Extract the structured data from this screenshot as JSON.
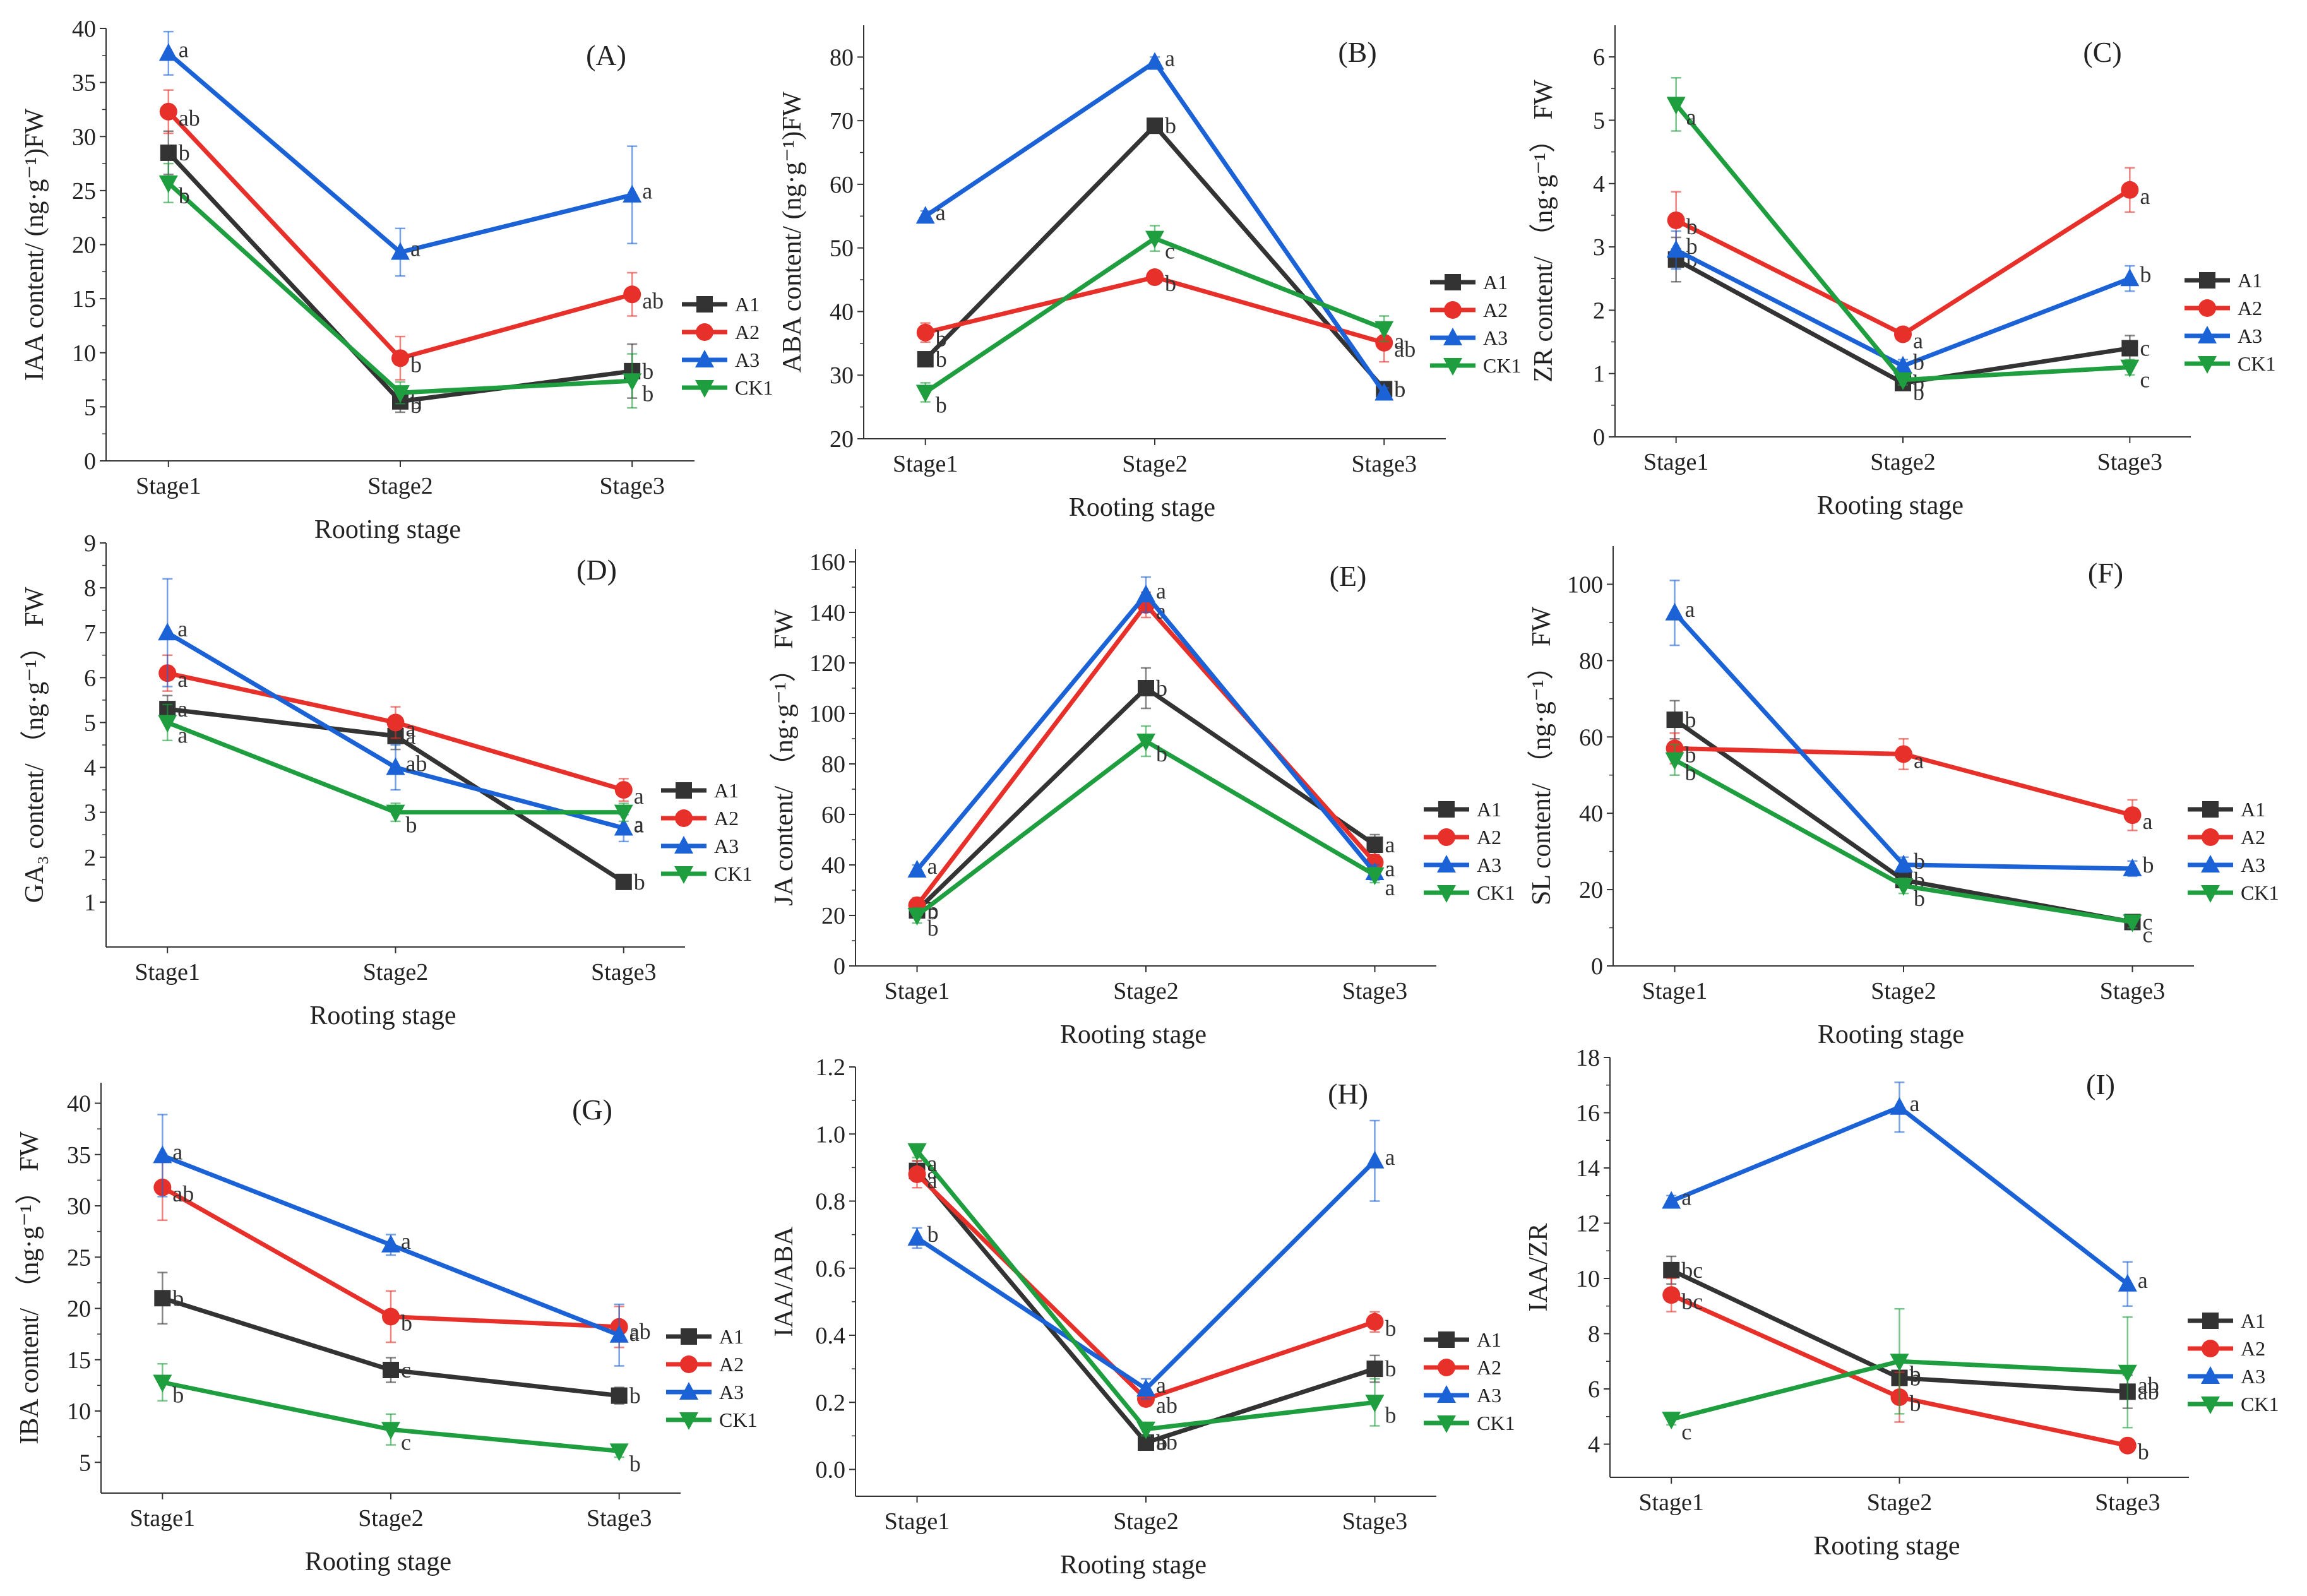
{
  "colors": {
    "A1": "#333333",
    "A2": "#e8302a",
    "A3": "#1a62d6",
    "CK1": "#1e9e3e"
  },
  "chart_data": [
    {
      "id": "A",
      "type": "line",
      "panel_label": "(A)",
      "title": "",
      "xlabel": "Rooting stage",
      "ylabel": "IAA content/ (ng·g⁻¹)FW",
      "categories": [
        "Stage1",
        "Stage2",
        "Stage3"
      ],
      "ylim": [
        0,
        40
      ],
      "yticks": [
        0,
        5,
        10,
        15,
        20,
        25,
        30,
        35,
        40
      ],
      "legend_position": "right-middle",
      "series": [
        {
          "name": "A1",
          "marker": "square",
          "values": [
            28.5,
            5.5,
            8.3
          ],
          "errors": [
            2.0,
            1.0,
            2.5
          ],
          "sig": [
            "b",
            "b",
            "b"
          ]
        },
        {
          "name": "A2",
          "marker": "circle",
          "values": [
            32.3,
            9.5,
            15.4
          ],
          "errors": [
            2.0,
            2.0,
            2.0
          ],
          "sig": [
            "ab",
            "b",
            "ab"
          ]
        },
        {
          "name": "A3",
          "marker": "triangle-up",
          "values": [
            37.7,
            19.3,
            24.6
          ],
          "errors": [
            2.0,
            2.2,
            4.5
          ],
          "sig": [
            "a",
            "a",
            "a"
          ]
        },
        {
          "name": "CK1",
          "marker": "triangle-down",
          "values": [
            25.7,
            6.3,
            7.4
          ],
          "errors": [
            1.8,
            1.0,
            2.5
          ],
          "sig": [
            "b",
            "b",
            "b"
          ]
        }
      ]
    },
    {
      "id": "B",
      "type": "line",
      "panel_label": "(B)",
      "title": "",
      "xlabel": "Rooting stage",
      "ylabel": "ABA content/ (ng·g⁻¹)FW",
      "categories": [
        "Stage1",
        "Stage2",
        "Stage3"
      ],
      "ylim": [
        20,
        85
      ],
      "yticks": [
        20,
        30,
        40,
        50,
        60,
        70,
        80
      ],
      "legend_position": "right-middle",
      "series": [
        {
          "name": "A1",
          "marker": "square",
          "values": [
            32.5,
            69.2,
            27.8
          ],
          "errors": [
            1.0,
            1.0,
            1.0
          ],
          "sig": [
            "b",
            "b",
            "b"
          ]
        },
        {
          "name": "A2",
          "marker": "circle",
          "values": [
            36.7,
            45.4,
            35.1
          ],
          "errors": [
            1.5,
            1.0,
            3.0
          ],
          "sig": [
            "b",
            "b",
            "ab"
          ]
        },
        {
          "name": "A3",
          "marker": "triangle-up",
          "values": [
            55.0,
            79.2,
            27.2
          ],
          "errors": [
            0.8,
            0.8,
            0.8
          ],
          "sig": [
            "a",
            "a",
            "b"
          ]
        },
        {
          "name": "CK1",
          "marker": "triangle-down",
          "values": [
            27.3,
            51.5,
            37.3
          ],
          "errors": [
            1.5,
            2.0,
            2.0
          ],
          "sig": [
            "b",
            "c",
            "a"
          ]
        }
      ]
    },
    {
      "id": "C",
      "type": "line",
      "panel_label": "(C)",
      "title": "",
      "xlabel": "Rooting stage",
      "ylabel": "ZR content/ （ng·g⁻¹） FW",
      "categories": [
        "Stage1",
        "Stage2",
        "Stage3"
      ],
      "ylim": [
        0,
        6.5
      ],
      "yticks": [
        0,
        1,
        2,
        3,
        4,
        5,
        6
      ],
      "legend_position": "right-middle",
      "series": [
        {
          "name": "A1",
          "marker": "square",
          "values": [
            2.8,
            0.85,
            1.4
          ],
          "errors": [
            0.35,
            0.08,
            0.2
          ],
          "sig": [
            "b",
            "b",
            "c"
          ]
        },
        {
          "name": "A2",
          "marker": "circle",
          "values": [
            3.42,
            1.62,
            3.9
          ],
          "errors": [
            0.45,
            0.08,
            0.35
          ],
          "sig": [
            "b",
            "a",
            "a"
          ]
        },
        {
          "name": "A3",
          "marker": "triangle-up",
          "values": [
            2.95,
            1.12,
            2.5
          ],
          "errors": [
            0.3,
            0.1,
            0.2
          ],
          "sig": [
            "b",
            "b",
            "b"
          ]
        },
        {
          "name": "CK1",
          "marker": "triangle-down",
          "values": [
            5.25,
            0.9,
            1.1
          ],
          "errors": [
            0.42,
            0.08,
            0.12
          ],
          "sig": [
            "a",
            "b",
            "c"
          ]
        }
      ]
    },
    {
      "id": "D",
      "type": "line",
      "panel_label": "(D)",
      "title": "",
      "xlabel": "Rooting stage",
      "ylabel": "GA₃ content/ （ng·g⁻¹） FW",
      "categories": [
        "Stage1",
        "Stage2",
        "Stage3"
      ],
      "ylim": [
        0,
        9
      ],
      "yticks": [
        1,
        2,
        3,
        4,
        5,
        6,
        7,
        8,
        9
      ],
      "legend_position": "right-middle",
      "series": [
        {
          "name": "A1",
          "marker": "square",
          "values": [
            5.3,
            4.7,
            1.45
          ],
          "errors": [
            0.3,
            0.3,
            0.08
          ],
          "sig": [
            "a",
            "a",
            "b"
          ]
        },
        {
          "name": "A2",
          "marker": "circle",
          "values": [
            6.1,
            5.0,
            3.5
          ],
          "errors": [
            0.4,
            0.35,
            0.25
          ],
          "sig": [
            "a",
            "a",
            "a"
          ]
        },
        {
          "name": "A3",
          "marker": "triangle-up",
          "values": [
            7.0,
            4.0,
            2.65
          ],
          "errors": [
            1.2,
            0.5,
            0.3
          ],
          "sig": [
            "a",
            "ab",
            "a"
          ]
        },
        {
          "name": "CK1",
          "marker": "triangle-down",
          "values": [
            5.0,
            3.0,
            3.0
          ],
          "errors": [
            0.4,
            0.2,
            0.2
          ],
          "sig": [
            "a",
            "b",
            "a"
          ]
        }
      ]
    },
    {
      "id": "E",
      "type": "line",
      "panel_label": "(E)",
      "title": "",
      "xlabel": "Rooting stage",
      "ylabel": "JA content/ （ng·g⁻¹） FW",
      "categories": [
        "Stage1",
        "Stage2",
        "Stage3"
      ],
      "ylim": [
        0,
        165
      ],
      "yticks": [
        0,
        20,
        40,
        60,
        80,
        100,
        120,
        140,
        160
      ],
      "legend_position": "right-middle",
      "series": [
        {
          "name": "A1",
          "marker": "square",
          "values": [
            22,
            110,
            48
          ],
          "errors": [
            3,
            8,
            4
          ],
          "sig": [
            "b",
            "b",
            "a"
          ]
        },
        {
          "name": "A2",
          "marker": "circle",
          "values": [
            24,
            143,
            41
          ],
          "errors": [
            3,
            5,
            3
          ],
          "sig": [
            "b",
            "a",
            "a"
          ]
        },
        {
          "name": "A3",
          "marker": "triangle-up",
          "values": [
            38,
            147,
            37
          ],
          "errors": [
            2,
            7,
            3
          ],
          "sig": [
            "a",
            "a",
            "a"
          ]
        },
        {
          "name": "CK1",
          "marker": "triangle-down",
          "values": [
            20,
            89,
            36
          ],
          "errors": [
            3,
            6,
            3
          ],
          "sig": [
            "b",
            "b",
            "a"
          ]
        }
      ]
    },
    {
      "id": "F",
      "type": "line",
      "panel_label": "(F)",
      "title": "",
      "xlabel": "Rooting stage",
      "ylabel": "SL content/ （ng·g⁻¹） FW",
      "categories": [
        "Stage1",
        "Stage2",
        "Stage3"
      ],
      "ylim": [
        0,
        110
      ],
      "yticks": [
        0,
        20,
        40,
        60,
        80,
        100
      ],
      "legend_position": "right-middle",
      "series": [
        {
          "name": "A1",
          "marker": "square",
          "values": [
            64.5,
            22.5,
            11.5
          ],
          "errors": [
            5,
            2,
            1.5
          ],
          "sig": [
            "b",
            "b",
            "c"
          ]
        },
        {
          "name": "A2",
          "marker": "circle",
          "values": [
            57,
            55.5,
            39.5
          ],
          "errors": [
            4,
            4,
            4
          ],
          "sig": [
            "b",
            "a",
            "a"
          ]
        },
        {
          "name": "A3",
          "marker": "triangle-up",
          "values": [
            92.5,
            26.5,
            25.5
          ],
          "errors": [
            8.5,
            2,
            2
          ],
          "sig": [
            "a",
            "b",
            "b"
          ]
        },
        {
          "name": "CK1",
          "marker": "triangle-down",
          "values": [
            54,
            21,
            11.5
          ],
          "errors": [
            4,
            2,
            1.5
          ],
          "sig": [
            "b",
            "b",
            "c"
          ]
        }
      ]
    },
    {
      "id": "G",
      "type": "line",
      "panel_label": "(G)",
      "title": "",
      "xlabel": "Rooting stage",
      "ylabel": "IBA content/ （ng·g⁻¹） FW",
      "categories": [
        "Stage1",
        "Stage2",
        "Stage3"
      ],
      "ylim": [
        2,
        42
      ],
      "yticks": [
        5,
        10,
        15,
        20,
        25,
        30,
        35,
        40
      ],
      "legend_position": "right-middle",
      "series": [
        {
          "name": "A1",
          "marker": "square",
          "values": [
            21,
            14,
            11.5
          ],
          "errors": [
            2.5,
            1.2,
            0.8
          ],
          "sig": [
            "b",
            "c",
            "b"
          ]
        },
        {
          "name": "A2",
          "marker": "circle",
          "values": [
            31.8,
            19.2,
            18.2
          ],
          "errors": [
            3.2,
            2.5,
            2.0
          ],
          "sig": [
            "ab",
            "b",
            "a"
          ]
        },
        {
          "name": "A3",
          "marker": "triangle-up",
          "values": [
            34.9,
            26.2,
            17.4
          ],
          "errors": [
            4.0,
            1.0,
            3.0
          ],
          "sig": [
            "a",
            "a",
            "ab"
          ]
        },
        {
          "name": "CK1",
          "marker": "triangle-down",
          "values": [
            12.8,
            8.2,
            6.1
          ],
          "errors": [
            1.8,
            1.5,
            0.6
          ],
          "sig": [
            "b",
            "c",
            "b"
          ]
        }
      ]
    },
    {
      "id": "H",
      "type": "line",
      "panel_label": "(H)",
      "title": "",
      "xlabel": "Rooting stage",
      "ylabel": "IAA/ABA",
      "categories": [
        "Stage1",
        "Stage2",
        "Stage3"
      ],
      "ylim": [
        -0.08,
        1.2
      ],
      "yticks": [
        0.0,
        0.2,
        0.4,
        0.6,
        0.8,
        1.0,
        1.2
      ],
      "legend_position": "right-middle",
      "series": [
        {
          "name": "A1",
          "marker": "square",
          "values": [
            0.89,
            0.08,
            0.3
          ],
          "errors": [
            0.03,
            0.01,
            0.04
          ],
          "sig": [
            "a",
            "b",
            "b"
          ]
        },
        {
          "name": "A2",
          "marker": "circle",
          "values": [
            0.88,
            0.21,
            0.44
          ],
          "errors": [
            0.04,
            0.02,
            0.03
          ],
          "sig": [
            "a",
            "ab",
            "b"
          ]
        },
        {
          "name": "A3",
          "marker": "triangle-up",
          "values": [
            0.69,
            0.24,
            0.92
          ],
          "errors": [
            0.03,
            0.03,
            0.12
          ],
          "sig": [
            "b",
            "a",
            "a"
          ]
        },
        {
          "name": "CK1",
          "marker": "triangle-down",
          "values": [
            0.95,
            0.12,
            0.2
          ],
          "errors": [
            0.02,
            0.02,
            0.07
          ],
          "sig": [
            "a",
            "ab",
            "b"
          ]
        }
      ]
    },
    {
      "id": "I",
      "type": "line",
      "panel_label": "(I)",
      "title": "",
      "xlabel": "Rooting stage",
      "ylabel": "IAA/ZR",
      "categories": [
        "Stage1",
        "Stage2",
        "Stage3"
      ],
      "ylim": [
        2.8,
        18
      ],
      "yticks": [
        4,
        6,
        8,
        10,
        12,
        14,
        16,
        18
      ],
      "legend_position": "right-middle",
      "series": [
        {
          "name": "A1",
          "marker": "square",
          "values": [
            10.3,
            6.4,
            5.9
          ],
          "errors": [
            0.5,
            0.6,
            0.6
          ],
          "sig": [
            "bc",
            "b",
            "ab"
          ]
        },
        {
          "name": "A2",
          "marker": "circle",
          "values": [
            9.4,
            5.7,
            3.95
          ],
          "errors": [
            0.6,
            0.9,
            0.2
          ],
          "sig": [
            "bc",
            "b",
            "b"
          ]
        },
        {
          "name": "A3",
          "marker": "triangle-up",
          "values": [
            12.8,
            16.2,
            9.8
          ],
          "errors": [
            0.2,
            0.9,
            0.8
          ],
          "sig": [
            "a",
            "a",
            "a"
          ]
        },
        {
          "name": "CK1",
          "marker": "triangle-down",
          "values": [
            4.9,
            7.0,
            6.6
          ],
          "errors": [
            0.2,
            1.9,
            2.0
          ],
          "sig": [
            "c",
            "b",
            "ab"
          ]
        }
      ]
    }
  ]
}
